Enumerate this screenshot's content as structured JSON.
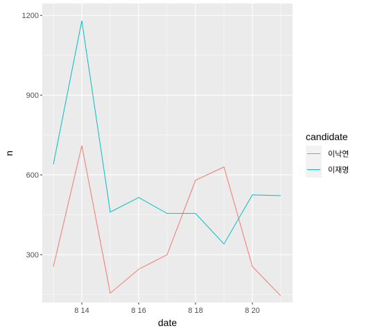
{
  "chart_data": {
    "type": "line",
    "xlabel": "date",
    "ylabel": "n",
    "x": [
      "8 13",
      "8 14",
      "8 15",
      "8 16",
      "8 17",
      "8 18",
      "8 19",
      "8 20",
      "8 21"
    ],
    "x_tick_labels": [
      "8 14",
      "8 16",
      "8 18",
      "8 20"
    ],
    "y_ticks": [
      300,
      600,
      900,
      1200
    ],
    "ylim": [
      120,
      1245
    ],
    "grid": true,
    "legend_position": "right",
    "legend_title": "candidate",
    "series": [
      {
        "name": "이낙연",
        "color": "#F8766D",
        "values": [
          255,
          710,
          155,
          245,
          300,
          580,
          630,
          255,
          145
        ]
      },
      {
        "name": "이재명",
        "color": "#00BFC4",
        "values": [
          640,
          1180,
          460,
          515,
          455,
          455,
          340,
          525,
          522
        ]
      }
    ]
  }
}
